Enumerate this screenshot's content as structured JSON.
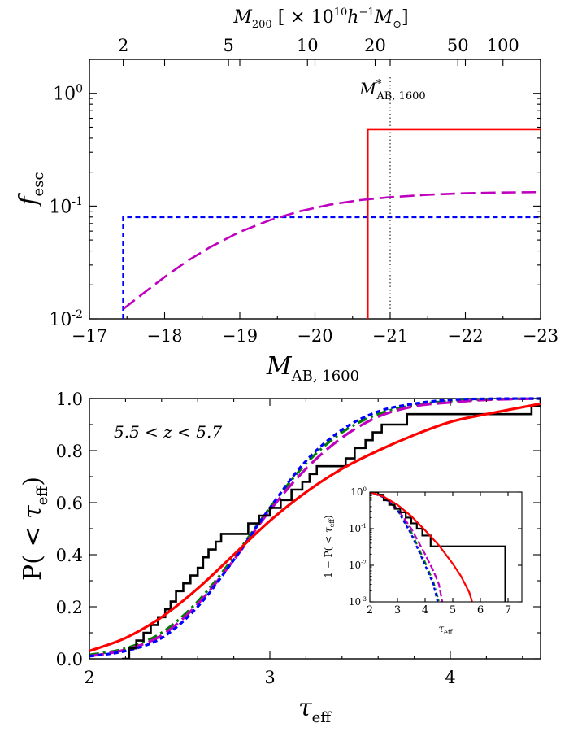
{
  "chart_data": [
    {
      "type": "line",
      "id": "fesc-vs-magnitude",
      "xlabel": "M_AB,1600",
      "ylabel": "f_esc",
      "top_xlabel": "M_200 [×10^10 h^-1 M_⊙]",
      "xlim": [
        -17,
        -23
      ],
      "ylim": [
        0.01,
        2.0
      ],
      "yscale": "log",
      "x_ticks": [
        -17,
        -18,
        -19,
        -20,
        -21,
        -22,
        -23
      ],
      "x_tick_labels": [
        "−17",
        "−18",
        "−19",
        "−20",
        "−21",
        "−22",
        "−23"
      ],
      "y_ticks": [
        1,
        0.1,
        0.01
      ],
      "y_tick_labels": [
        {
          "base": "10",
          "exp": "0"
        },
        {
          "base": "10",
          "exp": "-1"
        },
        {
          "base": "10",
          "exp": "-2"
        }
      ],
      "top_ticks": [
        {
          "label": "2",
          "mag": -17.45
        },
        {
          "label": "5",
          "mag": -18.85
        },
        {
          "label": "10",
          "mag": -19.9
        },
        {
          "label": "20",
          "mag": -20.8
        },
        {
          "label": "50",
          "mag": -21.9
        },
        {
          "label": "100",
          "mag": -22.5
        }
      ],
      "annotation": {
        "text": "M*AB, 1600",
        "x": -21.0
      },
      "series": [
        {
          "name": "step-blue",
          "color": "#0000ff",
          "dash": "dashed",
          "x": [
            -17.45,
            -17.45,
            -23
          ],
          "y": [
            0.01,
            0.08,
            0.08
          ]
        },
        {
          "name": "step-red",
          "color": "#ff0000",
          "dash": "solid",
          "x": [
            -20.7,
            -20.7,
            -23
          ],
          "y": [
            0.01,
            0.48,
            0.48
          ]
        },
        {
          "name": "smooth-magenta",
          "color": "#bf00bf",
          "dash": "long-dashed",
          "x": [
            -17.45,
            -17.7,
            -18.0,
            -18.3,
            -18.6,
            -19.0,
            -19.4,
            -19.8,
            -20.2,
            -20.6,
            -21.0,
            -21.5,
            -22.0,
            -22.5,
            -23.0
          ],
          "y": [
            0.0122,
            0.0165,
            0.0235,
            0.0325,
            0.043,
            0.059,
            0.075,
            0.09,
            0.103,
            0.113,
            0.12,
            0.126,
            0.13,
            0.132,
            0.133
          ]
        }
      ]
    },
    {
      "type": "line",
      "id": "cdf-tau-eff",
      "xlabel": "τ_eff",
      "ylabel": "P(< τ_eff)",
      "annotation": "5.5 < z < 5.7",
      "xlim": [
        2,
        4.5
      ],
      "ylim": [
        0,
        1
      ],
      "x_ticks": [
        2,
        3,
        4
      ],
      "x_tick_labels": [
        "2",
        "3",
        "4"
      ],
      "y_ticks": [
        0,
        0.2,
        0.4,
        0.6,
        0.8,
        1.0
      ],
      "y_tick_labels": [
        "0.0",
        "0.2",
        "0.4",
        "0.6",
        "0.8",
        "1.0"
      ],
      "series": [
        {
          "name": "observed",
          "color": "#000000",
          "dash": "solid",
          "step": true,
          "x": [
            2.18,
            2.22,
            2.26,
            2.3,
            2.34,
            2.38,
            2.42,
            2.45,
            2.48,
            2.52,
            2.56,
            2.6,
            2.63,
            2.66,
            2.7,
            2.73,
            2.88,
            2.94,
            3.0,
            3.06,
            3.12,
            3.18,
            3.22,
            3.26,
            3.3,
            3.42,
            3.47,
            3.53,
            3.57,
            3.62,
            3.7,
            3.76,
            3.84,
            4.0,
            4.45,
            4.5
          ],
          "y": [
            0.0,
            0.04,
            0.07,
            0.1,
            0.13,
            0.16,
            0.19,
            0.22,
            0.26,
            0.29,
            0.32,
            0.35,
            0.39,
            0.42,
            0.45,
            0.48,
            0.52,
            0.55,
            0.58,
            0.61,
            0.65,
            0.68,
            0.71,
            0.74,
            0.74,
            0.77,
            0.81,
            0.84,
            0.87,
            0.9,
            0.9,
            0.94,
            0.94,
            0.94,
            0.97,
            1.0
          ]
        },
        {
          "name": "model-red",
          "color": "#ff0000",
          "dash": "solid",
          "x": [
            2.0,
            2.2,
            2.4,
            2.6,
            2.8,
            3.0,
            3.2,
            3.4,
            3.6,
            3.8,
            4.0,
            4.2,
            4.5
          ],
          "y": [
            0.03,
            0.08,
            0.16,
            0.27,
            0.4,
            0.53,
            0.64,
            0.73,
            0.8,
            0.86,
            0.91,
            0.94,
            0.98
          ]
        },
        {
          "name": "model-blue",
          "color": "#0000ff",
          "dash": "dashed",
          "x": [
            2.0,
            2.2,
            2.4,
            2.6,
            2.8,
            3.0,
            3.2,
            3.4,
            3.6,
            3.8,
            4.0,
            4.2,
            4.5
          ],
          "y": [
            0.01,
            0.03,
            0.08,
            0.2,
            0.38,
            0.58,
            0.76,
            0.88,
            0.95,
            0.98,
            0.995,
            0.999,
            1.0
          ]
        },
        {
          "name": "model-magenta",
          "color": "#bf00bf",
          "dash": "long-dashed",
          "x": [
            2.0,
            2.2,
            2.4,
            2.6,
            2.8,
            3.0,
            3.2,
            3.4,
            3.6,
            3.8,
            4.0,
            4.2,
            4.5
          ],
          "y": [
            0.01,
            0.035,
            0.09,
            0.21,
            0.38,
            0.57,
            0.73,
            0.85,
            0.93,
            0.97,
            0.985,
            0.995,
            1.0
          ]
        },
        {
          "name": "model-green",
          "color": "#007f00",
          "dash": "dash-dot",
          "x": [
            2.0,
            2.2,
            2.4,
            2.6,
            2.8,
            3.0,
            3.2,
            3.4,
            3.6,
            3.8,
            4.0,
            4.2,
            4.5
          ],
          "y": [
            0.015,
            0.04,
            0.1,
            0.22,
            0.39,
            0.58,
            0.75,
            0.87,
            0.94,
            0.975,
            0.99,
            0.997,
            1.0
          ]
        }
      ]
    },
    {
      "type": "line",
      "id": "inset-complementary-cdf",
      "xlabel": "τ_eff",
      "ylabel": "1 − P(< τ_eff)",
      "xlim": [
        2,
        7.5
      ],
      "ylim": [
        0.001,
        1
      ],
      "yscale": "log",
      "x_ticks": [
        2,
        3,
        4,
        5,
        6,
        7
      ],
      "x_tick_labels": [
        "2",
        "3",
        "4",
        "5",
        "6",
        "7"
      ],
      "y_ticks": [
        1,
        0.1,
        0.01,
        0.001
      ],
      "y_tick_labels": [
        {
          "base": "10",
          "exp": "0"
        },
        {
          "base": "10",
          "exp": "-1"
        },
        {
          "base": "10",
          "exp": "-2"
        },
        {
          "base": "10",
          "exp": "-3"
        }
      ],
      "series": [
        {
          "name": "observed",
          "color": "#000000",
          "dash": "solid",
          "step": true,
          "x": [
            2.0,
            2.3,
            2.5,
            2.7,
            2.9,
            3.1,
            3.3,
            3.5,
            3.7,
            3.9,
            4.2,
            4.6,
            6.9,
            6.9
          ],
          "y": [
            1.0,
            0.85,
            0.6,
            0.45,
            0.35,
            0.28,
            0.2,
            0.14,
            0.1,
            0.065,
            0.033,
            0.033,
            0.033,
            0.001
          ]
        },
        {
          "name": "model-red",
          "color": "#ff0000",
          "dash": "solid",
          "x": [
            2.0,
            2.5,
            3.0,
            3.5,
            4.0,
            4.5,
            5.0,
            5.3,
            5.6,
            5.7
          ],
          "y": [
            1.0,
            0.75,
            0.45,
            0.22,
            0.09,
            0.035,
            0.011,
            0.005,
            0.0018,
            0.001
          ]
        },
        {
          "name": "model-magenta",
          "color": "#bf00bf",
          "dash": "long-dashed",
          "x": [
            2.0,
            2.5,
            3.0,
            3.5,
            4.0,
            4.3,
            4.5,
            4.62
          ],
          "y": [
            1.0,
            0.75,
            0.35,
            0.1,
            0.02,
            0.007,
            0.003,
            0.001
          ]
        },
        {
          "name": "model-blue",
          "color": "#0000ff",
          "dash": "dashed",
          "x": [
            2.0,
            2.5,
            3.0,
            3.5,
            4.0,
            4.3,
            4.45
          ],
          "y": [
            1.0,
            0.72,
            0.32,
            0.07,
            0.01,
            0.003,
            0.001
          ]
        },
        {
          "name": "model-green",
          "color": "#007f00",
          "dash": "dash-dot",
          "x": [
            2.0,
            2.5,
            3.0,
            3.5,
            4.0,
            4.3,
            4.5
          ],
          "y": [
            1.0,
            0.74,
            0.33,
            0.08,
            0.012,
            0.0035,
            0.001
          ]
        }
      ]
    }
  ]
}
